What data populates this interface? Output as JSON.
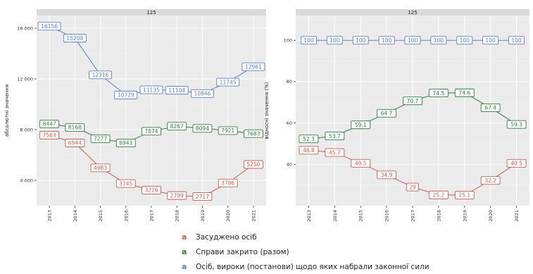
{
  "chart_data": [
    {
      "type": "line",
      "facet_label": "125",
      "ylabel": "абсолютні значення",
      "x": [
        "2013",
        "2014",
        "2015",
        "2016",
        "2017",
        "2018",
        "2019",
        "2020",
        "2021"
      ],
      "ylim": [
        2000,
        17000
      ],
      "yticks": [
        4000,
        8000,
        12000,
        16000
      ],
      "yticklabels": [
        "4 000",
        "8 000",
        "12 000",
        "16 000"
      ],
      "series": [
        {
          "key": "a",
          "color": "#5b7fc4",
          "values": [
            16156,
            15208,
            12316,
            10729,
            11135,
            11104,
            10846,
            11745,
            12961
          ],
          "labels": [
            "16156",
            "15208",
            "12316",
            "10729",
            "11135",
            "11104",
            "10846",
            "11745",
            "12961"
          ]
        },
        {
          "key": "a",
          "color": "#2f7d3c",
          "values": [
            8447,
            8168,
            7277,
            6943,
            7874,
            8267,
            8094,
            7921,
            7683
          ],
          "labels": [
            "8447",
            "8168",
            "7277",
            "6943",
            "7874",
            "8267",
            "8094",
            "7921",
            "7683"
          ]
        },
        {
          "key": "a",
          "color": "#c06057",
          "values": [
            7563,
            6944,
            4983,
            3745,
            3226,
            2799,
            2717,
            3786,
            5250
          ],
          "labels": [
            "7563",
            "6944",
            "4983",
            "3745",
            "3226",
            "2799",
            "2717",
            "3786",
            "5250"
          ]
        }
      ]
    },
    {
      "type": "line",
      "facet_label": "125",
      "ylabel": "відносні значення (%)",
      "x": [
        "2013",
        "2014",
        "2015",
        "2016",
        "2017",
        "2018",
        "2019",
        "2020",
        "2021"
      ],
      "ylim": [
        20,
        112
      ],
      "yticks": [
        40,
        60,
        80,
        100
      ],
      "yticklabels": [
        "40",
        "60",
        "80",
        "100"
      ],
      "series": [
        {
          "key": "a",
          "color": "#5b7fc4",
          "values": [
            100,
            100,
            100,
            100,
            100,
            100,
            100,
            100,
            100
          ],
          "labels": [
            "100",
            "100",
            "100",
            "100",
            "100",
            "100",
            "100",
            "100",
            "100"
          ]
        },
        {
          "key": "a",
          "color": "#2f7d3c",
          "values": [
            52.3,
            53.7,
            59.1,
            64.7,
            70.7,
            74.5,
            74.6,
            67.4,
            59.3
          ],
          "labels": [
            "52 3",
            "53.7",
            "59.1",
            "64 7",
            "70.7",
            "74.5",
            "74.6",
            "67.4",
            "59.3"
          ]
        },
        {
          "key": "a",
          "color": "#c06057",
          "values": [
            46.8,
            45.7,
            40.5,
            34.9,
            29,
            25.2,
            25.1,
            32.2,
            40.5
          ],
          "labels": [
            "46.8",
            "45.7",
            "40.5",
            "34.9",
            "29",
            "25.2",
            "25.1",
            "32.2",
            "40.5"
          ]
        }
      ]
    }
  ],
  "legend": {
    "items": [
      {
        "key": "a",
        "label": "Засуджено осіб",
        "color": "#c06057"
      },
      {
        "key": "a",
        "label": "Справи закрито (разом)",
        "color": "#2f7d3c"
      },
      {
        "key": "a",
        "label": "Осіб, вироки (постанови) щодо яких набрали законної сили",
        "color": "#5b7fc4"
      }
    ]
  }
}
